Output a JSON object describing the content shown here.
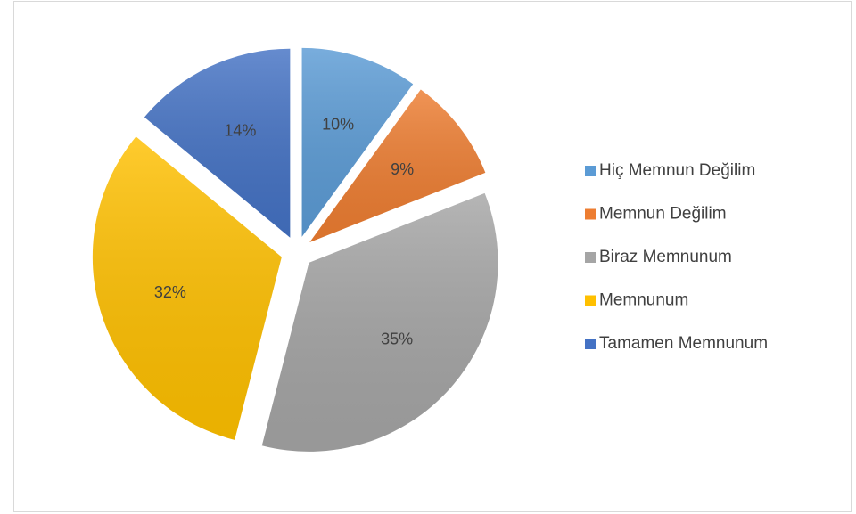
{
  "chart_data": {
    "type": "pie",
    "categories": [
      "Hiç Memnun Değilim",
      "Memnun Değilim",
      "Biraz Memnunum",
      "Memnunum",
      "Tamamen Memnunum"
    ],
    "values": [
      10,
      9,
      35,
      32,
      14
    ],
    "value_labels": [
      "10%",
      "9%",
      "35%",
      "32%",
      "14%"
    ],
    "colors": [
      "#5b9bd5",
      "#ed7d31",
      "#a5a5a5",
      "#ffc000",
      "#4472c4"
    ],
    "legend": "right"
  }
}
